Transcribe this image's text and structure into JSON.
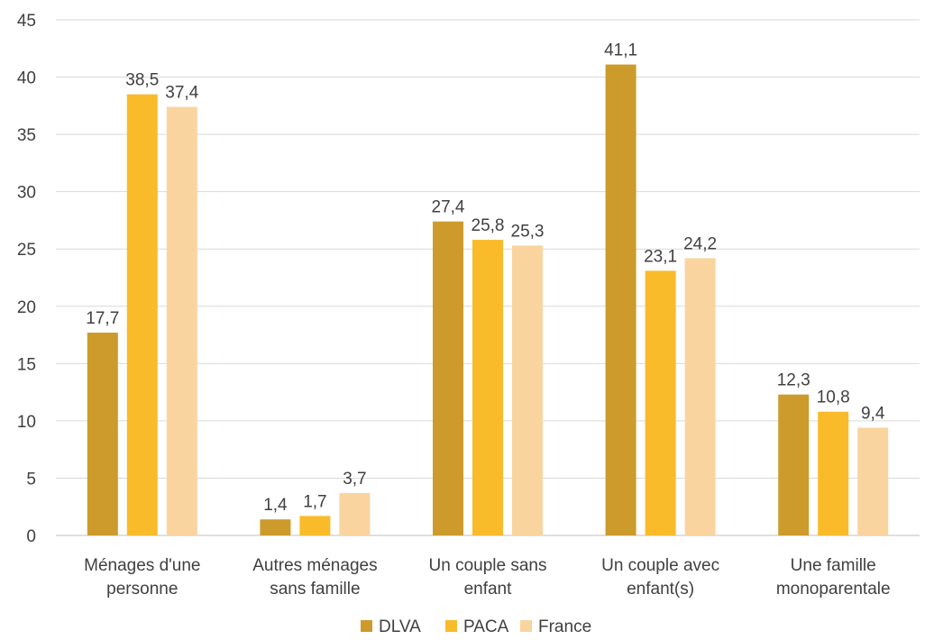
{
  "chart_data": {
    "type": "bar",
    "categories": [
      [
        "Ménages d'une",
        "personne"
      ],
      [
        "Autres ménages",
        "sans famille"
      ],
      [
        "Un couple sans",
        "enfant"
      ],
      [
        "Un couple avec",
        "enfant(s)"
      ],
      [
        "Une famille",
        "monoparentale"
      ]
    ],
    "series": [
      {
        "name": "DLVA",
        "color": "#cc9b2c",
        "values": [
          17.7,
          1.4,
          27.4,
          41.1,
          12.3
        ],
        "labels": [
          "17,7",
          "1,4",
          "27,4",
          "41,1",
          "12,3"
        ]
      },
      {
        "name": "PACA",
        "color": "#f9bb2a",
        "values": [
          38.5,
          1.7,
          25.8,
          23.1,
          10.8
        ],
        "labels": [
          "38,5",
          "1,7",
          "25,8",
          "23,1",
          "10,8"
        ]
      },
      {
        "name": "France",
        "color": "#fad49f",
        "values": [
          37.4,
          3.7,
          25.3,
          24.2,
          9.4
        ],
        "labels": [
          "37,4",
          "3,7",
          "25,3",
          "24,2",
          "9,4"
        ]
      }
    ],
    "ylim": [
      0,
      45
    ],
    "yticks": [
      "0",
      "5",
      "10",
      "15",
      "20",
      "25",
      "30",
      "35",
      "40",
      "45"
    ],
    "grid": true,
    "legend": "bottom-center"
  }
}
